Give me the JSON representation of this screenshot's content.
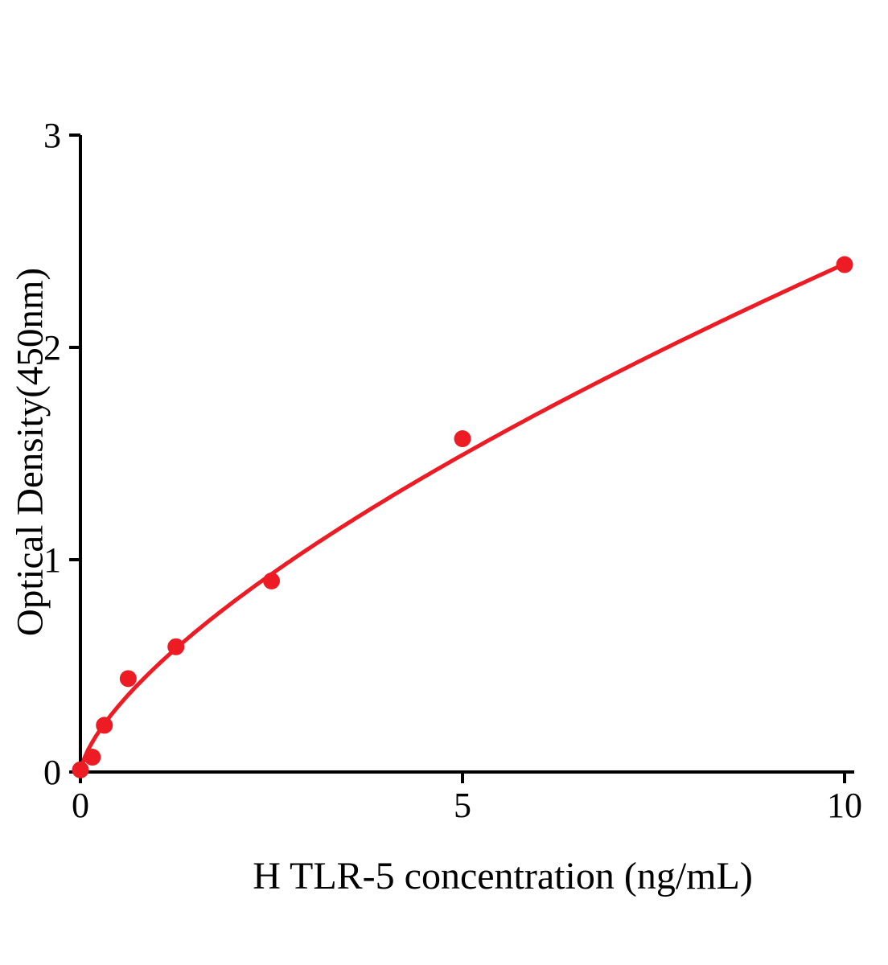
{
  "chart_data": {
    "type": "scatter",
    "title": "",
    "xlabel": "H TLR-5 concentration (ng/mL)",
    "ylabel": "Optical Density(450nm)",
    "xlim": [
      0,
      10
    ],
    "ylim": [
      0,
      3
    ],
    "xticks": [
      "0",
      "5",
      "10"
    ],
    "xtick_values": [
      0,
      5,
      10
    ],
    "yticks": [
      "0",
      "1",
      "2",
      "3"
    ],
    "ytick_values": [
      0,
      1,
      2,
      3
    ],
    "grid": false,
    "legend": "none",
    "color": "#ed1c24",
    "axis_color": "#000000",
    "marker": "filled-circle",
    "points": [
      {
        "x": 0,
        "y": 0.01
      },
      {
        "x": 0.156,
        "y": 0.07
      },
      {
        "x": 0.313,
        "y": 0.22
      },
      {
        "x": 0.625,
        "y": 0.44
      },
      {
        "x": 1.25,
        "y": 0.59
      },
      {
        "x": 2.5,
        "y": 0.9
      },
      {
        "x": 5,
        "y": 1.57
      },
      {
        "x": 10,
        "y": 2.39
      }
    ],
    "fit": {
      "model": "power",
      "formula": "y = a * x^b",
      "a": 0.5,
      "b": 0.68
    }
  }
}
